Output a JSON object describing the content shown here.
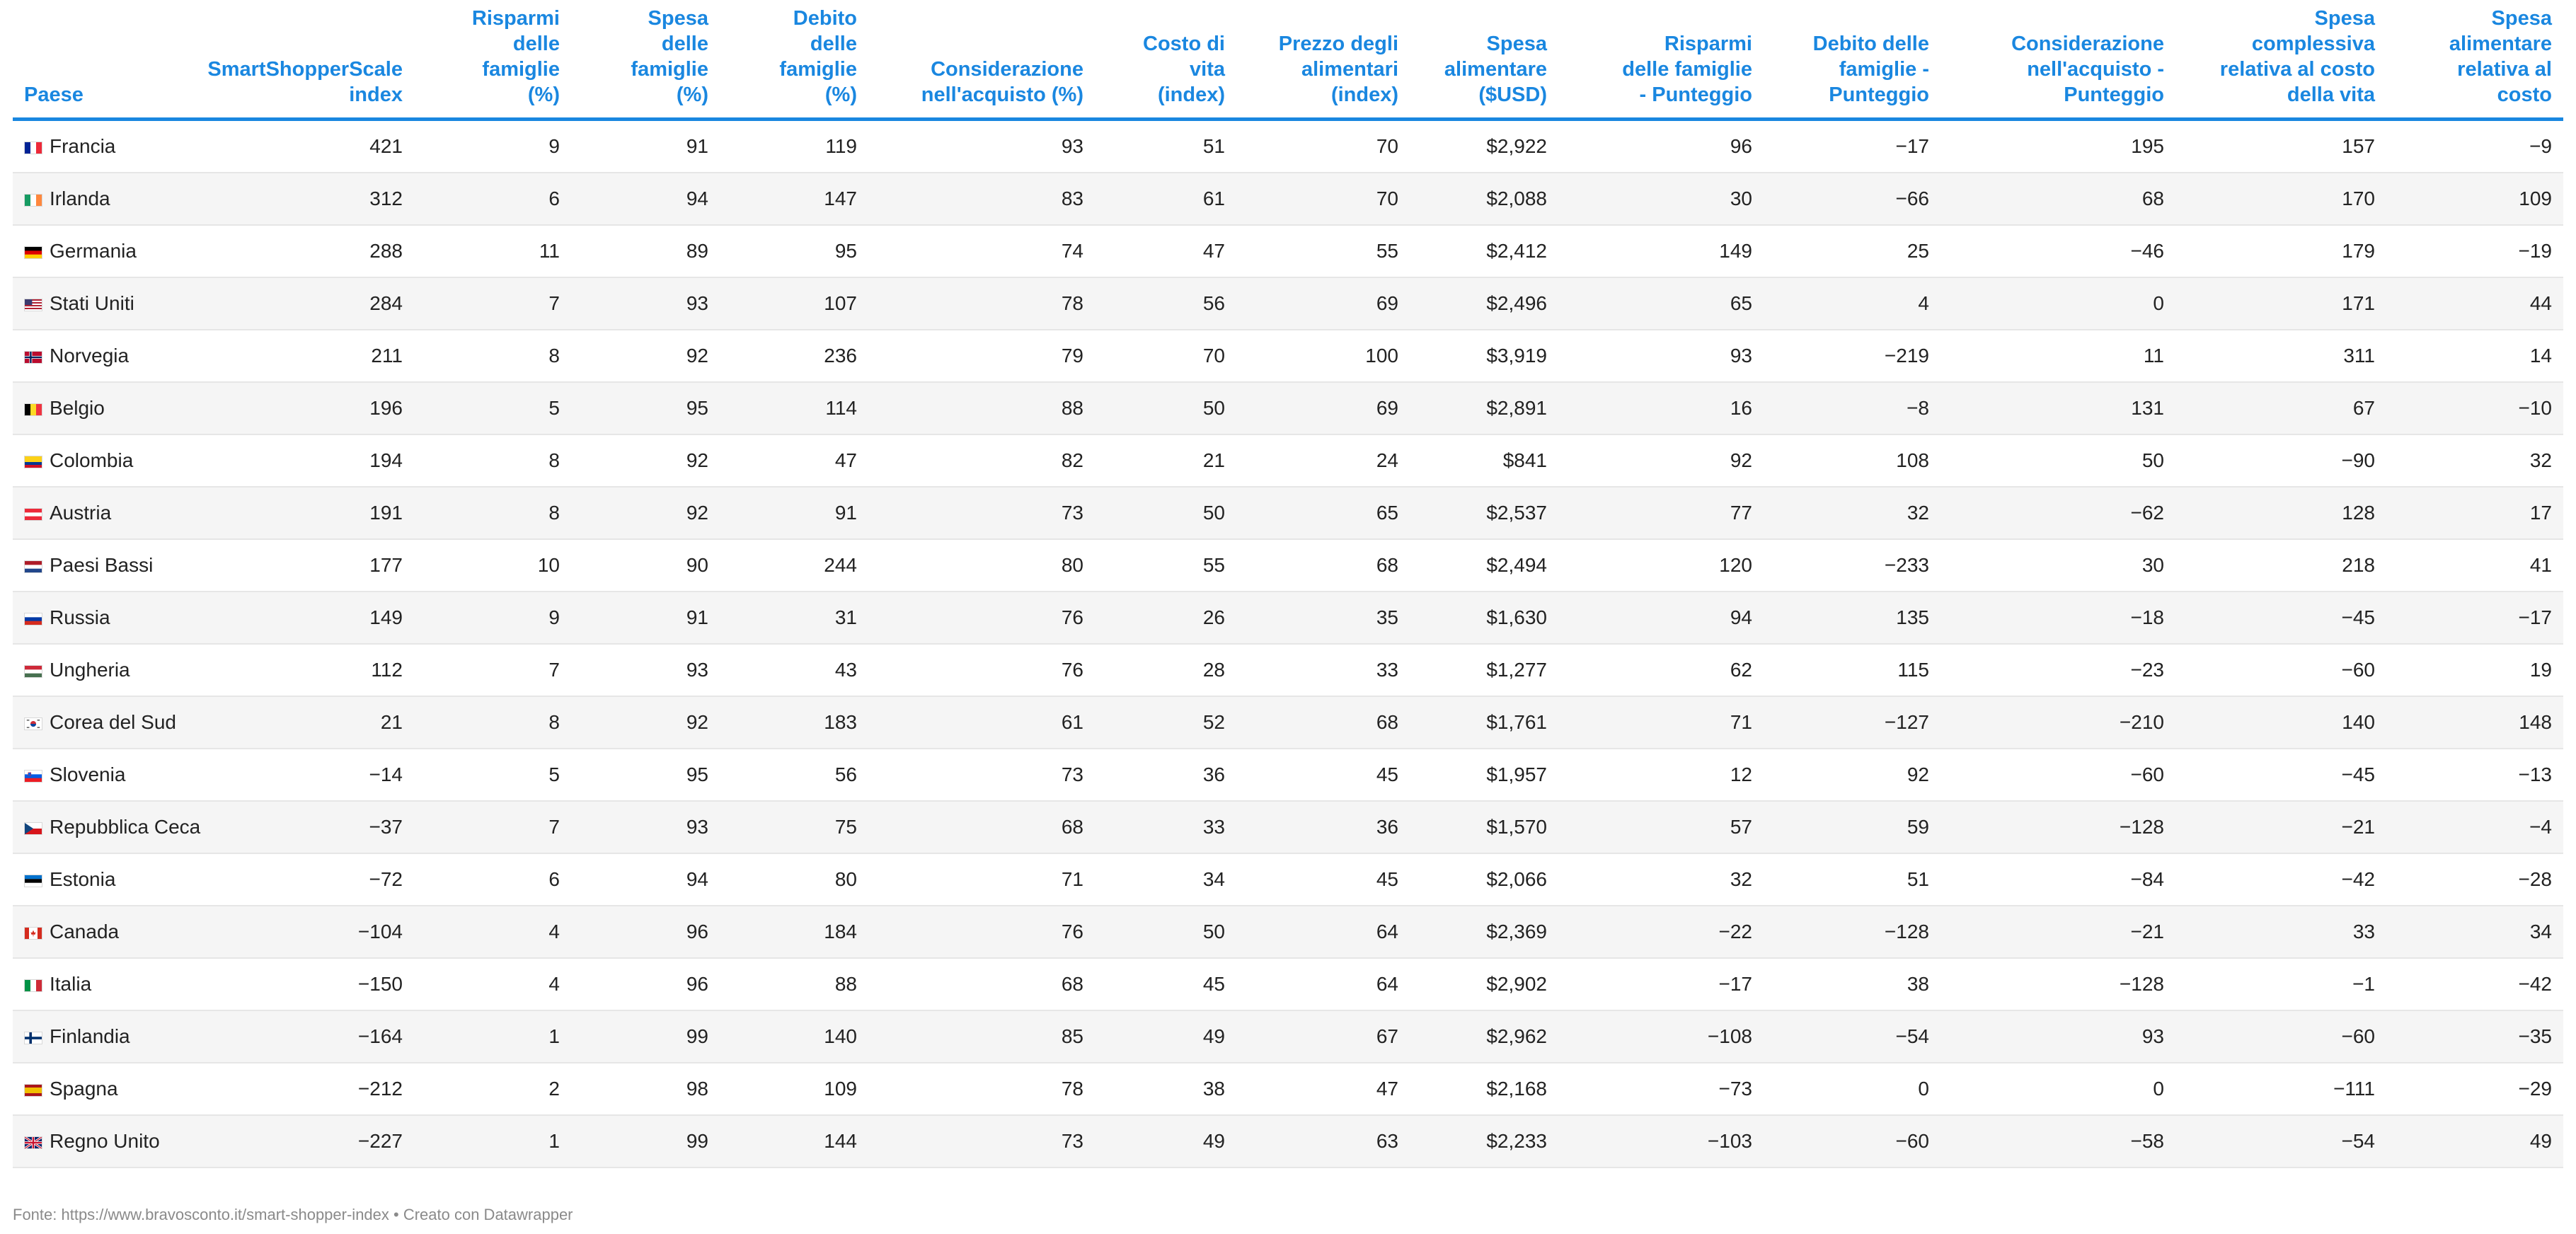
{
  "columns": [
    [
      "Paese"
    ],
    [
      "SmartShopperScale",
      "index"
    ],
    [
      "Risparmi",
      "delle",
      "famiglie",
      "(%)"
    ],
    [
      "Spesa",
      "delle",
      "famiglie",
      "(%)"
    ],
    [
      "Debito",
      "delle",
      "famiglie",
      "(%)"
    ],
    [
      "Considerazione",
      "nell'acquisto (%)"
    ],
    [
      "Costo di",
      "vita",
      "(index)"
    ],
    [
      "Prezzo degli",
      "alimentari",
      "(index)"
    ],
    [
      "Spesa",
      "alimentare",
      "($USD)"
    ],
    [
      "Risparmi",
      "delle famiglie",
      "- Punteggio"
    ],
    [
      "Debito delle",
      "famiglie -",
      "Punteggio"
    ],
    [
      "Considerazione",
      "nell'acquisto -",
      "Punteggio"
    ],
    [
      "Spesa",
      "complessiva",
      "relativa al costo",
      "della vita"
    ],
    [
      "Spesa",
      "alimentare",
      "relativa al",
      "costo"
    ]
  ],
  "rows": [
    {
      "flag": "fr",
      "country": "Francia",
      "cells": [
        "421",
        "9",
        "91",
        "119",
        "93",
        "51",
        "70",
        "$2,922",
        "96",
        "−17",
        "195",
        "157",
        "−9"
      ]
    },
    {
      "flag": "ie",
      "country": "Irlanda",
      "cells": [
        "312",
        "6",
        "94",
        "147",
        "83",
        "61",
        "70",
        "$2,088",
        "30",
        "−66",
        "68",
        "170",
        "109"
      ]
    },
    {
      "flag": "de",
      "country": "Germania",
      "cells": [
        "288",
        "11",
        "89",
        "95",
        "74",
        "47",
        "55",
        "$2,412",
        "149",
        "25",
        "−46",
        "179",
        "−19"
      ]
    },
    {
      "flag": "us",
      "country": "Stati Uniti",
      "cells": [
        "284",
        "7",
        "93",
        "107",
        "78",
        "56",
        "69",
        "$2,496",
        "65",
        "4",
        "0",
        "171",
        "44"
      ]
    },
    {
      "flag": "no",
      "country": "Norvegia",
      "cells": [
        "211",
        "8",
        "92",
        "236",
        "79",
        "70",
        "100",
        "$3,919",
        "93",
        "−219",
        "11",
        "311",
        "14"
      ]
    },
    {
      "flag": "be",
      "country": "Belgio",
      "cells": [
        "196",
        "5",
        "95",
        "114",
        "88",
        "50",
        "69",
        "$2,891",
        "16",
        "−8",
        "131",
        "67",
        "−10"
      ]
    },
    {
      "flag": "co",
      "country": "Colombia",
      "cells": [
        "194",
        "8",
        "92",
        "47",
        "82",
        "21",
        "24",
        "$841",
        "92",
        "108",
        "50",
        "−90",
        "32"
      ]
    },
    {
      "flag": "at",
      "country": "Austria",
      "cells": [
        "191",
        "8",
        "92",
        "91",
        "73",
        "50",
        "65",
        "$2,537",
        "77",
        "32",
        "−62",
        "128",
        "17"
      ]
    },
    {
      "flag": "nl",
      "country": "Paesi Bassi",
      "cells": [
        "177",
        "10",
        "90",
        "244",
        "80",
        "55",
        "68",
        "$2,494",
        "120",
        "−233",
        "30",
        "218",
        "41"
      ]
    },
    {
      "flag": "ru",
      "country": "Russia",
      "cells": [
        "149",
        "9",
        "91",
        "31",
        "76",
        "26",
        "35",
        "$1,630",
        "94",
        "135",
        "−18",
        "−45",
        "−17"
      ]
    },
    {
      "flag": "hu",
      "country": "Ungheria",
      "cells": [
        "112",
        "7",
        "93",
        "43",
        "76",
        "28",
        "33",
        "$1,277",
        "62",
        "115",
        "−23",
        "−60",
        "19"
      ]
    },
    {
      "flag": "kr",
      "country": "Corea del Sud",
      "cells": [
        "21",
        "8",
        "92",
        "183",
        "61",
        "52",
        "68",
        "$1,761",
        "71",
        "−127",
        "−210",
        "140",
        "148"
      ]
    },
    {
      "flag": "si",
      "country": "Slovenia",
      "cells": [
        "−14",
        "5",
        "95",
        "56",
        "73",
        "36",
        "45",
        "$1,957",
        "12",
        "92",
        "−60",
        "−45",
        "−13"
      ]
    },
    {
      "flag": "cz",
      "country": "Repubblica Ceca",
      "cells": [
        "−37",
        "7",
        "93",
        "75",
        "68",
        "33",
        "36",
        "$1,570",
        "57",
        "59",
        "−128",
        "−21",
        "−4"
      ]
    },
    {
      "flag": "ee",
      "country": "Estonia",
      "cells": [
        "−72",
        "6",
        "94",
        "80",
        "71",
        "34",
        "45",
        "$2,066",
        "32",
        "51",
        "−84",
        "−42",
        "−28"
      ]
    },
    {
      "flag": "ca",
      "country": "Canada",
      "cells": [
        "−104",
        "4",
        "96",
        "184",
        "76",
        "50",
        "64",
        "$2,369",
        "−22",
        "−128",
        "−21",
        "33",
        "34"
      ]
    },
    {
      "flag": "it",
      "country": "Italia",
      "cells": [
        "−150",
        "4",
        "96",
        "88",
        "68",
        "45",
        "64",
        "$2,902",
        "−17",
        "38",
        "−128",
        "−1",
        "−42"
      ]
    },
    {
      "flag": "fi",
      "country": "Finlandia",
      "cells": [
        "−164",
        "1",
        "99",
        "140",
        "85",
        "49",
        "67",
        "$2,962",
        "−108",
        "−54",
        "93",
        "−60",
        "−35"
      ]
    },
    {
      "flag": "es",
      "country": "Spagna",
      "cells": [
        "−212",
        "2",
        "98",
        "109",
        "78",
        "38",
        "47",
        "$2,168",
        "−73",
        "0",
        "0",
        "−111",
        "−29"
      ]
    },
    {
      "flag": "gb",
      "country": "Regno Unito",
      "cells": [
        "−227",
        "1",
        "99",
        "144",
        "73",
        "49",
        "63",
        "$2,233",
        "−103",
        "−60",
        "−58",
        "−54",
        "49"
      ]
    }
  ],
  "footer": "Fonte: https://www.bravosconto.it/smart-shopper-index • Creato con Datawrapper"
}
